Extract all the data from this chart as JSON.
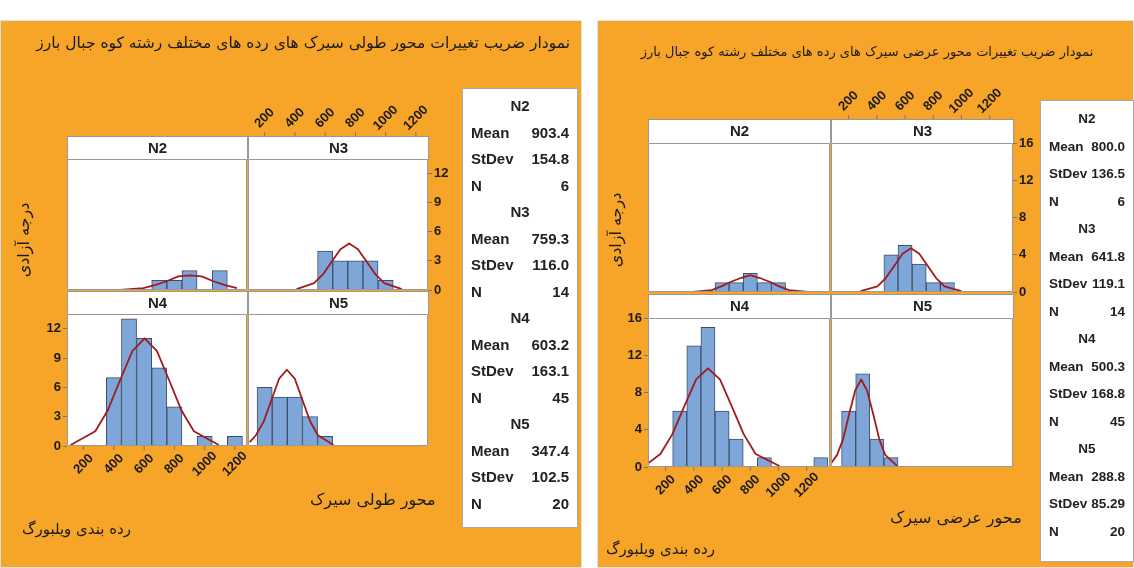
{
  "chart_data": [
    {
      "type": "other",
      "title": "نمودار ضریب تغییرات محور طولی سیرک های رده های مختلف رشته کوه جبال بارز",
      "annotations": [
        "رده بندی ویلبورگ"
      ]
    },
    {
      "type": "histogram",
      "title": "N2",
      "bins": [
        650,
        750,
        850,
        950,
        1050,
        1150
      ],
      "values": [
        1,
        1,
        2,
        0,
        2
      ],
      "color": "#7ea6d8",
      "xlim": [
        90,
        1280
      ],
      "ylim": [
        0,
        13.5
      ],
      "tick_labels": false,
      "series": [
        {
          "type": "line",
          "x": [
            440,
            594,
            671,
            749,
            826,
            903,
            981,
            1058,
            1136,
            1213
          ],
          "values": [
            0,
            0.2,
            0.5,
            0.9,
            1.4,
            1.5,
            1.4,
            0.9,
            0.5,
            0.2
          ],
          "color": "#a01c1c"
        }
      ]
    },
    {
      "type": "histogram",
      "title": "N3",
      "bins": [
        550,
        650,
        750,
        850,
        950,
        1050
      ],
      "values": [
        4,
        3,
        3,
        3,
        1
      ],
      "color": "#7ea6d8",
      "xlim": [
        90,
        1280
      ],
      "ylim": [
        0,
        13.5
      ],
      "xticks": [
        200,
        400,
        600,
        800,
        1000,
        1200
      ],
      "yticks": [
        0,
        3,
        6,
        9,
        12
      ],
      "series": [
        {
          "type": "line",
          "x": [
            411,
            527,
            585,
            643,
            701,
            759,
            817,
            875,
            933,
            991,
            1107
          ],
          "values": [
            0.1,
            0.7,
            1.6,
            2.9,
            4.2,
            4.8,
            4.2,
            2.9,
            1.6,
            0.7,
            0.1
          ],
          "color": "#a01c1c"
        }
      ]
    },
    {
      "type": "histogram",
      "title": "N4",
      "xlabel": "محور طولی سیرک",
      "ylabel": "درجه آزادی",
      "bins": [
        350,
        450,
        550,
        650,
        750,
        850,
        950,
        1050,
        1150,
        1250
      ],
      "values": [
        7,
        13,
        11,
        8,
        4,
        0,
        1,
        0,
        1
      ],
      "color": "#7ea6d8",
      "xlim": [
        90,
        1280
      ],
      "ylim": [
        0,
        13.5
      ],
      "xticks": [
        200,
        400,
        600,
        800,
        1000,
        1200
      ],
      "yticks": [
        0,
        3,
        6,
        9,
        12
      ],
      "series": [
        {
          "type": "line",
          "x": [
            114,
            277,
            358,
            440,
            522,
            603,
            685,
            766,
            848,
            929,
            1093
          ],
          "values": [
            0.1,
            1.5,
            3.6,
            6.7,
            9.7,
            11.0,
            9.7,
            6.7,
            3.6,
            1.5,
            0.1
          ],
          "color": "#a01c1c"
        }
      ]
    },
    {
      "type": "histogram",
      "title": "N5",
      "bins": [
        150,
        250,
        350,
        450,
        550,
        650
      ],
      "values": [
        6,
        5,
        5,
        3,
        1
      ],
      "color": "#7ea6d8",
      "xlim": [
        90,
        1280
      ],
      "ylim": [
        0,
        13.5
      ],
      "tick_labels": false,
      "series": [
        {
          "type": "line",
          "x": [
            101,
            142,
            194,
            245,
            296,
            347,
            399,
            450,
            501,
            552,
            655
          ],
          "values": [
            0.4,
            1.1,
            2.5,
            4.7,
            6.9,
            7.8,
            6.9,
            4.7,
            2.5,
            1.1,
            0.1
          ],
          "color": "#a01c1c"
        }
      ]
    },
    {
      "type": "other",
      "annotations": [
        "N2",
        "Mean 903.4",
        "StDev 154.8",
        "N 6",
        "N3",
        "Mean 759.3",
        "StDev 116.0",
        "N 14",
        "N4",
        "Mean 603.2",
        "StDev 163.1",
        "N 45",
        "N5",
        "Mean 347.4",
        "StDev 102.5",
        "N 20"
      ]
    },
    {
      "type": "other",
      "title": "نمودار ضریب تغییرات محور عرضی سیرک های رده های مختلف رشته کوه جبال بارز",
      "annotations": [
        "رده بندی ویلبورگ"
      ]
    },
    {
      "type": "histogram",
      "title": "N2",
      "bins": [
        550,
        650,
        750,
        850,
        950,
        1050
      ],
      "values": [
        1,
        1,
        2,
        1,
        1
      ],
      "color": "#7ea6d8",
      "xlim": [
        75,
        1365
      ],
      "ylim": [
        0,
        16
      ],
      "tick_labels": false,
      "series": [
        {
          "type": "line",
          "x": [
            390,
            527,
            595,
            664,
            732,
            800,
            868,
            937,
            1005,
            1073,
            1210
          ],
          "values": [
            0,
            0.2,
            0.6,
            1.1,
            1.5,
            1.8,
            1.5,
            1.1,
            0.6,
            0.2,
            0
          ],
          "color": "#a01c1c"
        }
      ]
    },
    {
      "type": "histogram",
      "title": "N3",
      "bins": [
        450,
        550,
        650,
        750,
        850,
        950
      ],
      "values": [
        4,
        5,
        3,
        1,
        1
      ],
      "color": "#7ea6d8",
      "xlim": [
        75,
        1365
      ],
      "ylim": [
        0,
        16
      ],
      "xticks": [
        200,
        400,
        600,
        800,
        1000,
        1200
      ],
      "yticks": [
        0,
        4,
        8,
        12,
        16
      ],
      "series": [
        {
          "type": "line",
          "x": [
            284,
            404,
            463,
            523,
            582,
            642,
            701,
            761,
            820,
            880,
            999
          ],
          "values": [
            0.1,
            0.6,
            1.5,
            2.8,
            4.1,
            4.7,
            4.1,
            2.8,
            1.5,
            0.6,
            0.1
          ],
          "color": "#a01c1c"
        }
      ]
    },
    {
      "type": "histogram",
      "title": "N4",
      "xlabel": "محور عرضی سیرک",
      "ylabel": "درجه آزادی",
      "bins": [
        250,
        350,
        450,
        550,
        650,
        750,
        850,
        950,
        1050,
        1150,
        1250,
        1350
      ],
      "values": [
        6,
        13,
        15,
        6,
        3,
        0,
        1,
        0,
        0,
        0,
        1
      ],
      "color": "#7ea6d8",
      "xlim": [
        75,
        1365
      ],
      "ylim": [
        0,
        16
      ],
      "xticks": [
        200,
        400,
        600,
        800,
        1000,
        1200
      ],
      "yticks": [
        0,
        4,
        8,
        12,
        16
      ],
      "series": [
        {
          "type": "line",
          "x": [
            75,
            163,
            247,
            332,
            416,
            500,
            585,
            669,
            754,
            838,
            1007
          ],
          "values": [
            0.4,
            1.4,
            3.5,
            6.5,
            9.4,
            10.6,
            9.4,
            6.5,
            3.5,
            1.4,
            0.1
          ],
          "color": "#a01c1c"
        }
      ]
    },
    {
      "type": "histogram",
      "title": "N5",
      "bins": [
        150,
        250,
        350,
        450,
        550
      ],
      "values": [
        6,
        10,
        3,
        1
      ],
      "color": "#7ea6d8",
      "xlim": [
        75,
        1365
      ],
      "ylim": [
        0,
        16
      ],
      "tick_labels": false,
      "series": [
        {
          "type": "line",
          "x": [
            76,
            118,
            161,
            204,
            246,
            289,
            331,
            374,
            417,
            459,
            545
          ],
          "values": [
            0.4,
            1.3,
            3.0,
            5.7,
            8.2,
            9.4,
            8.2,
            5.7,
            3.0,
            1.3,
            0.1
          ],
          "color": "#a01c1c"
        }
      ]
    },
    {
      "type": "other",
      "annotations": [
        "N2",
        "Mean 800.0",
        "StDev 136.5",
        "N 6",
        "N3",
        "Mean 641.8",
        "StDev 119.1",
        "N 14",
        "N4",
        "Mean 500.3",
        "StDev 168.8",
        "N 45",
        "N5",
        "Mean 288.8",
        "StDev 85.29",
        "N 20"
      ]
    }
  ]
}
